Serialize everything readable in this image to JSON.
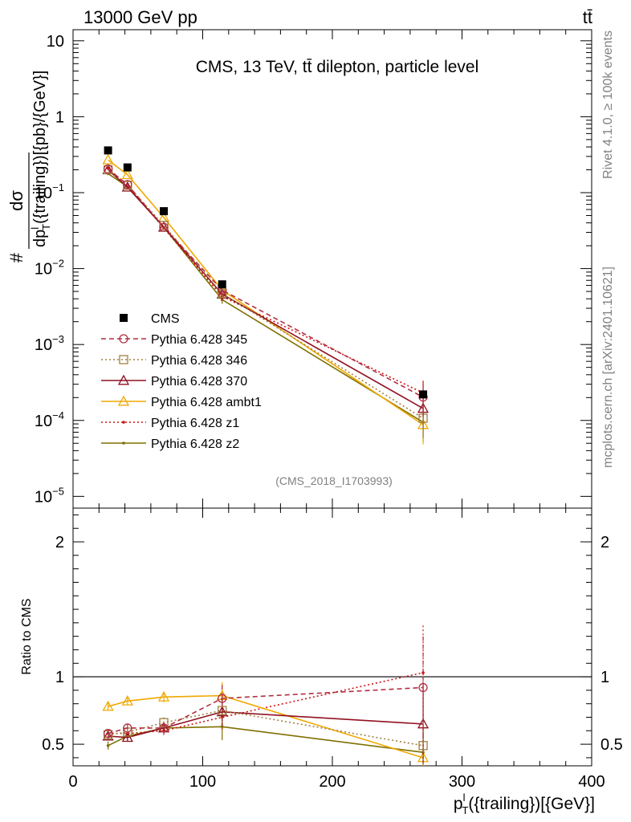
{
  "header": {
    "left_label": "13000 GeV pp",
    "right_label": "tt̄"
  },
  "side_labels": {
    "rivet": "Rivet 4.1.0, ≥ 100k events",
    "source": "mcplots.cern.ch [arXiv:2401.10621]"
  },
  "chart_data": [
    {
      "type": "line",
      "panel": "main",
      "title": "CMS, 13 TeV, tt̄ dilepton, particle level",
      "analysis_tag": "(CMS_2018_I1703993)",
      "ylabel_parts": {
        "hash": "#",
        "num": "dσ",
        "den_prefix": "dp",
        "den_sup": "l",
        "den_sub": "T",
        "den_suffix": "({trailing})[{pb}/{GeV}]"
      },
      "xlim": [
        0,
        400
      ],
      "ylim": [
        7e-06,
        14
      ],
      "yscale": "log",
      "y_tick_labels": [
        {
          "value": 10,
          "label": "10"
        },
        {
          "value": 1,
          "label": "1"
        },
        {
          "value": 0.1,
          "mant": "10",
          "exp": "−1"
        },
        {
          "value": 0.01,
          "mant": "10",
          "exp": "−2"
        },
        {
          "value": 0.001,
          "mant": "10",
          "exp": "−3"
        },
        {
          "value": 0.0001,
          "mant": "10",
          "exp": "−4"
        },
        {
          "value": 1e-05,
          "mant": "10",
          "exp": "−5"
        }
      ],
      "x": [
        27,
        42,
        70,
        115,
        270
      ],
      "series": [
        {
          "name": "CMS",
          "color": "#000000",
          "marker": "filled-square",
          "line": "none",
          "values": [
            0.36,
            0.215,
            0.057,
            0.0062,
            0.00022
          ]
        },
        {
          "name": "Pythia 6.428 345",
          "color": "#b03040",
          "marker": "open-circle",
          "line": "dashed",
          "values": [
            0.205,
            0.128,
            0.035,
            0.0052,
            0.000203
          ]
        },
        {
          "name": "Pythia 6.428 346",
          "color": "#a08040",
          "marker": "open-square",
          "line": "dotted",
          "values": [
            0.2,
            0.125,
            0.037,
            0.0047,
            0.000107
          ]
        },
        {
          "name": "Pythia 6.428 370",
          "color": "#901020",
          "marker": "open-triangle",
          "line": "solid",
          "values": [
            0.2,
            0.118,
            0.035,
            0.0046,
            0.000144
          ]
        },
        {
          "name": "Pythia 6.428 ambt1",
          "color": "#f0a800",
          "marker": "open-triangle",
          "line": "solid",
          "values": [
            0.27,
            0.172,
            0.047,
            0.0052,
            8.8e-05
          ]
        },
        {
          "name": "Pythia 6.428 z1",
          "color": "#d01010",
          "marker": "dot",
          "line": "dotted",
          "values": [
            0.21,
            0.125,
            0.034,
            0.0043,
            0.00023
          ]
        },
        {
          "name": "Pythia 6.428 z2",
          "color": "#807000",
          "marker": "dot",
          "line": "solid",
          "values": [
            0.178,
            0.12,
            0.035,
            0.0039,
            9.5e-05
          ]
        }
      ]
    },
    {
      "type": "line",
      "panel": "ratio",
      "ylabel": "Ratio to CMS",
      "xlabel_parts": {
        "main": "p",
        "sup": "l",
        "sub": "T",
        "suffix": "({trailing})[{GeV}]"
      },
      "xlim": [
        0,
        400
      ],
      "ylim": [
        0.34,
        2.25
      ],
      "x_tick_labels": [
        "0",
        "100",
        "200",
        "300",
        "400"
      ],
      "x_tick_values": [
        0,
        100,
        200,
        300,
        400
      ],
      "y_tick_labels": [
        "0.5",
        "1",
        "2"
      ],
      "y_tick_values": [
        0.5,
        1,
        2
      ],
      "reference": 1,
      "x": [
        27,
        42,
        70,
        115,
        270
      ],
      "series": [
        {
          "name": "Pythia 6.428 345",
          "color": "#b03040",
          "marker": "open-circle",
          "line": "dashed",
          "values": [
            0.58,
            0.62,
            0.62,
            0.84,
            0.92
          ],
          "err": [
            0.03,
            0.03,
            0.04,
            0.1,
            0.38
          ]
        },
        {
          "name": "Pythia 6.428 346",
          "color": "#a08040",
          "marker": "open-square",
          "line": "dotted",
          "values": [
            0.57,
            0.59,
            0.66,
            0.75,
            0.49
          ],
          "err": [
            0.03,
            0.03,
            0.04,
            0.1,
            0.2
          ]
        },
        {
          "name": "Pythia 6.428 370",
          "color": "#901020",
          "marker": "open-triangle",
          "line": "solid",
          "values": [
            0.56,
            0.55,
            0.62,
            0.74,
            0.65
          ],
          "err": [
            0.03,
            0.03,
            0.04,
            0.1,
            0.3
          ]
        },
        {
          "name": "Pythia 6.428 ambt1",
          "color": "#f0a800",
          "marker": "open-triangle",
          "line": "solid",
          "values": [
            0.78,
            0.82,
            0.85,
            0.86,
            0.4
          ],
          "err": [
            0.03,
            0.03,
            0.04,
            0.1,
            0.2
          ]
        },
        {
          "name": "Pythia 6.428 z1",
          "color": "#d01010",
          "marker": "dot",
          "line": "dotted",
          "values": [
            0.58,
            0.58,
            0.6,
            0.7,
            1.03
          ],
          "err": [
            0.03,
            0.03,
            0.04,
            0.1,
            0.35
          ]
        },
        {
          "name": "Pythia 6.428 z2",
          "color": "#807000",
          "marker": "dot",
          "line": "solid",
          "values": [
            0.49,
            0.56,
            0.62,
            0.63,
            0.44
          ],
          "err": [
            0.03,
            0.03,
            0.04,
            0.1,
            0.2
          ]
        }
      ]
    }
  ]
}
